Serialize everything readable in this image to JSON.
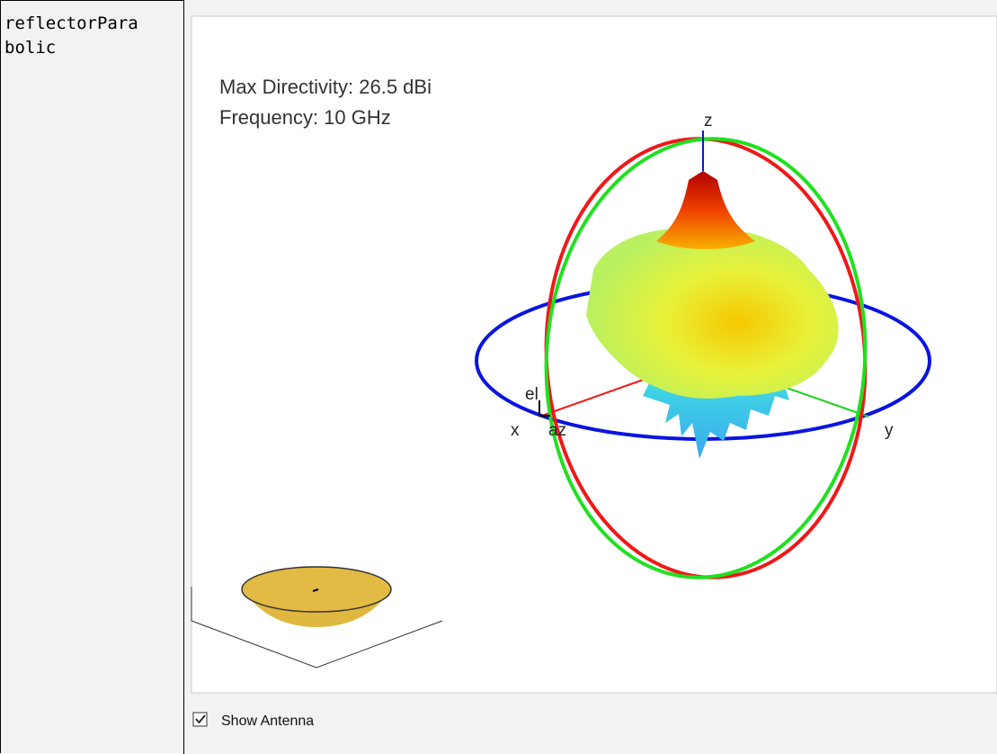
{
  "cell_label": "reflectorParabolic",
  "plot": {
    "annotation_lines": [
      "Max Directivity: 26.5 dBi",
      "Frequency: 10 GHz"
    ],
    "axis_labels": {
      "x": "x",
      "y": "y",
      "z": "z",
      "el": "el",
      "az": "az"
    }
  },
  "controls": {
    "checkbox_label": "Show Antenna",
    "checked": true
  }
}
